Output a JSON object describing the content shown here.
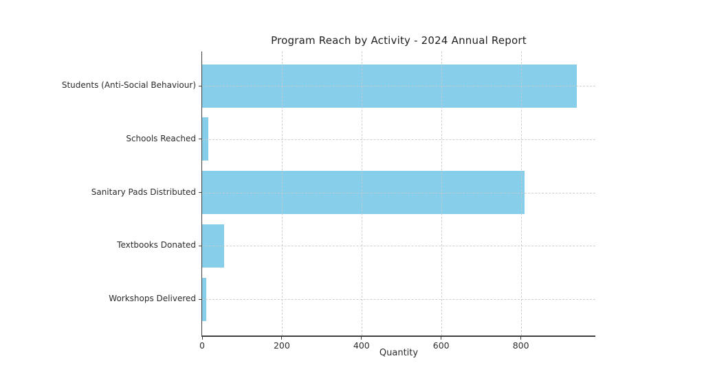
{
  "chart_data": {
    "type": "bar",
    "orientation": "horizontal",
    "title": "Program Reach by Activity - 2024 Annual Report",
    "xlabel": "Quantity",
    "ylabel": "",
    "categories": [
      "Students (Anti-Social Behaviour)",
      "Schools Reached",
      "Sanitary Pads Distributed",
      "Textbooks Donated",
      "Workshops Delivered"
    ],
    "values": [
      940,
      15,
      810,
      55,
      10
    ],
    "xticks": [
      0,
      200,
      400,
      600,
      800
    ],
    "xlim": [
      0,
      987
    ],
    "bar_color": "#87CEEB",
    "grid": true,
    "grid_style": "dashed",
    "legend": "none",
    "background": "#ffffff"
  }
}
